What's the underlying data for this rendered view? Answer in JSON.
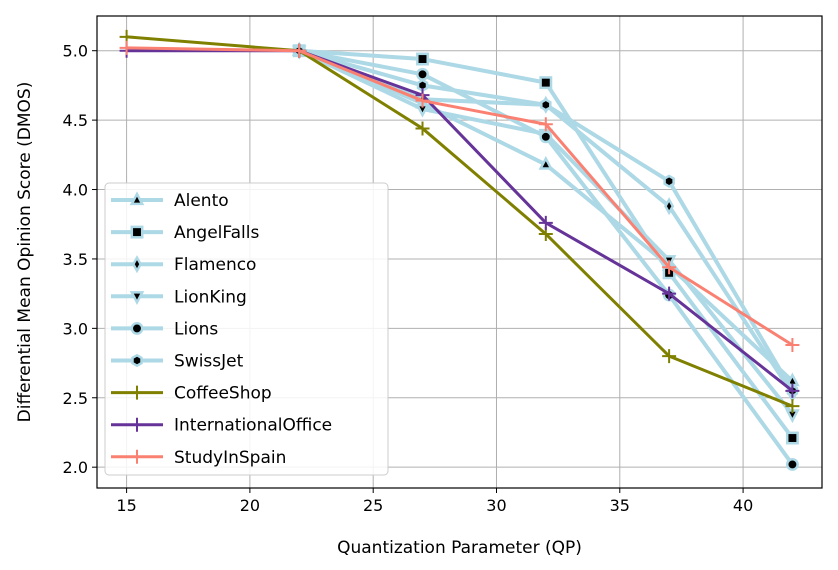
{
  "chart_data": {
    "type": "line",
    "xlabel": "Quantization Parameter (QP)",
    "ylabel": "Differential Mean Opinion Score (DMOS)",
    "xlim": [
      13.8,
      43.2
    ],
    "ylim": [
      1.85,
      5.25
    ],
    "xticks": [
      15,
      20,
      25,
      30,
      35,
      40
    ],
    "yticks": [
      2.0,
      2.5,
      3.0,
      3.5,
      4.0,
      4.5,
      5.0
    ],
    "xtick_labels": [
      "15",
      "20",
      "25",
      "30",
      "35",
      "40"
    ],
    "ytick_labels": [
      "2.0",
      "2.5",
      "3.0",
      "3.5",
      "4.0",
      "4.5",
      "5.0"
    ],
    "grid": true,
    "legend_position": "lower-left",
    "series": [
      {
        "name": "Alento",
        "x": [
          22,
          27,
          32,
          37,
          42
        ],
        "y": [
          5.0,
          4.62,
          4.18,
          3.45,
          2.62
        ],
        "color": "#add8e6",
        "marker": "triangle-up"
      },
      {
        "name": "AngelFalls",
        "x": [
          22,
          27,
          32,
          37,
          42
        ],
        "y": [
          5.0,
          4.94,
          4.77,
          3.4,
          2.21
        ],
        "color": "#add8e6",
        "marker": "square"
      },
      {
        "name": "Flamenco",
        "x": [
          22,
          27,
          32,
          37,
          42
        ],
        "y": [
          5.0,
          4.65,
          4.61,
          3.88,
          2.53
        ],
        "color": "#add8e6",
        "marker": "diamond"
      },
      {
        "name": "LionKing",
        "x": [
          22,
          27,
          32,
          37,
          42
        ],
        "y": [
          5.0,
          4.58,
          4.4,
          3.49,
          2.38
        ],
        "color": "#add8e6",
        "marker": "triangle-down"
      },
      {
        "name": "Lions",
        "x": [
          22,
          27,
          32,
          37,
          42
        ],
        "y": [
          5.0,
          4.83,
          4.38,
          3.24,
          2.02
        ],
        "color": "#add8e6",
        "marker": "circle"
      },
      {
        "name": "SwissJet",
        "x": [
          22,
          27,
          32,
          37,
          42
        ],
        "y": [
          5.0,
          4.75,
          4.61,
          4.06,
          2.55
        ],
        "color": "#add8e6",
        "marker": "hexagon"
      },
      {
        "name": "CoffeeShop",
        "x": [
          15,
          22,
          27,
          32,
          37,
          42
        ],
        "y": [
          5.1,
          5.0,
          4.44,
          3.68,
          2.8,
          2.44
        ],
        "color": "#808000",
        "marker": "plus"
      },
      {
        "name": "InternationalOffice",
        "x": [
          15,
          22,
          27,
          32,
          37,
          42
        ],
        "y": [
          5.0,
          5.0,
          4.68,
          3.76,
          3.25,
          2.55
        ],
        "color": "#663399",
        "marker": "plus"
      },
      {
        "name": "StudyInSpain",
        "x": [
          15,
          22,
          27,
          32,
          37,
          42
        ],
        "y": [
          5.02,
          5.0,
          4.64,
          4.47,
          3.44,
          2.88
        ],
        "color": "#fa8072",
        "marker": "plus"
      }
    ]
  }
}
